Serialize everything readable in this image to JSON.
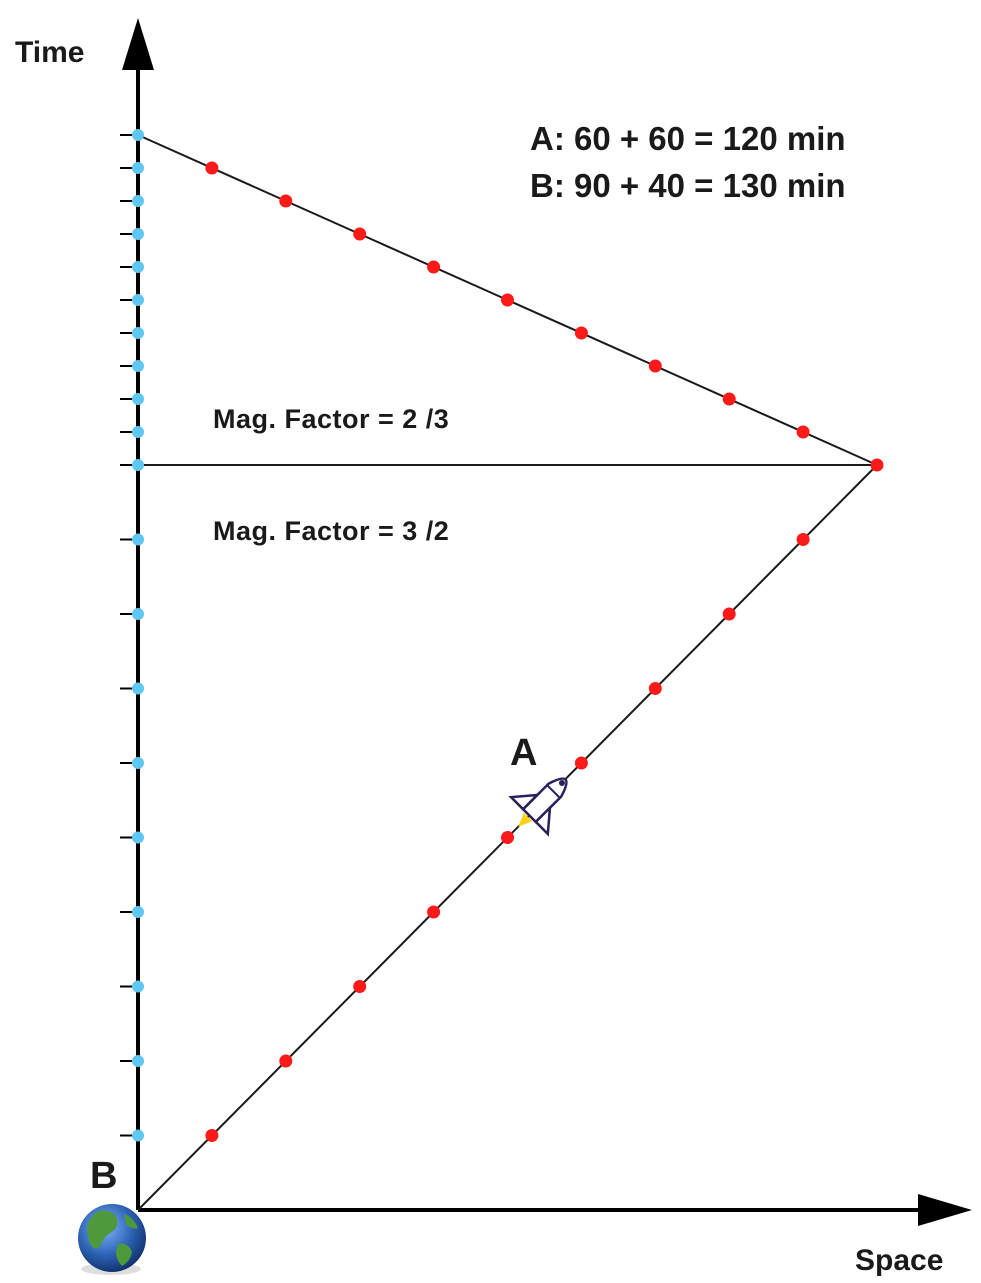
{
  "axes": {
    "time_label": "Time",
    "space_label": "Space"
  },
  "labels": {
    "observer_a": "A",
    "observer_b": "B"
  },
  "equations": {
    "a": "A:  60 + 60 = 120 min",
    "b": "B:  90 + 40 = 130 min"
  },
  "mag_factor": {
    "upper": "Mag. Factor = 2 /3",
    "lower": "Mag. Factor = 3 /2"
  },
  "colors": {
    "axis": "#000000",
    "worldline": "#1a1a1a",
    "b_ticks": "#5ec8f2",
    "a_ticks": "#ff1a1a",
    "earth_ocean": "#2a5fb0",
    "earth_land": "#4e9a3a"
  },
  "icons": {
    "observer_b": "earth-globe-icon",
    "observer_a": "space-shuttle-icon"
  }
}
